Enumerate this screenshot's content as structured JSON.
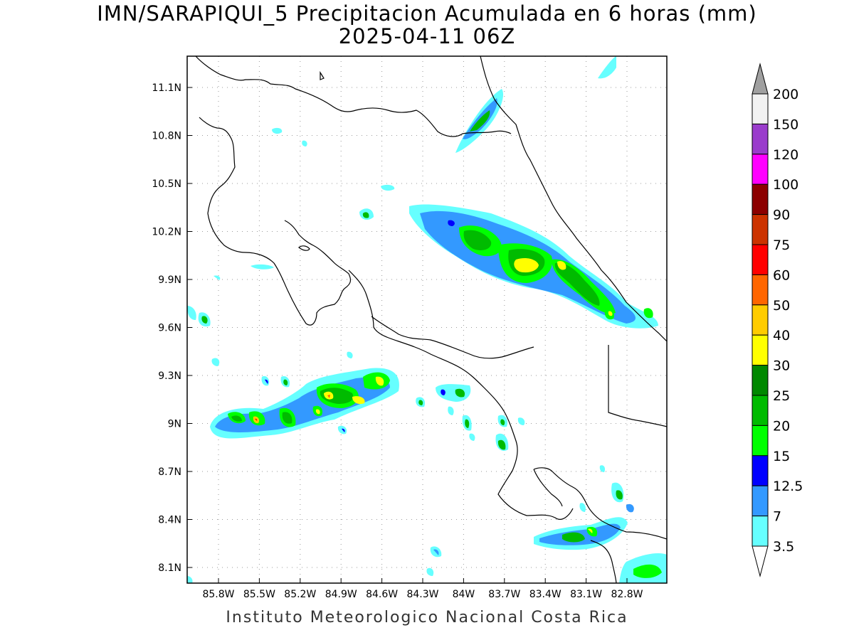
{
  "title": {
    "line1": "IMN/SARAPIQUI_5 Precipitacion Acumulada en 6 horas (mm)",
    "line2": "2025-04-11 06Z"
  },
  "footer": "Instituto Meteorologico Nacional Costa Rica",
  "axes": {
    "lat_ticks": [
      "11.1N",
      "10.8N",
      "10.5N",
      "10.2N",
      "9.9N",
      "9.6N",
      "9.3N",
      "9N",
      "8.7N",
      "8.4N",
      "8.1N"
    ],
    "lon_ticks": [
      "85.8W",
      "85.5W",
      "85.2W",
      "84.9W",
      "84.6W",
      "84.3W",
      "84W",
      "83.7W",
      "83.4W",
      "83.1W",
      "82.8W"
    ]
  },
  "colorbar": {
    "levels": [
      {
        "label": "200",
        "color": "#f2f2f2"
      },
      {
        "label": "150",
        "color": "#9a3ccc"
      },
      {
        "label": "120",
        "color": "#ff00ff"
      },
      {
        "label": "100",
        "color": "#8c0000"
      },
      {
        "label": "90",
        "color": "#cc3300"
      },
      {
        "label": "75",
        "color": "#ff0000"
      },
      {
        "label": "60",
        "color": "#ff6600"
      },
      {
        "label": "50",
        "color": "#ffcc00"
      },
      {
        "label": "40",
        "color": "#ffff00"
      },
      {
        "label": "30",
        "color": "#008800"
      },
      {
        "label": "25",
        "color": "#00bb00"
      },
      {
        "label": "20",
        "color": "#00ff00"
      },
      {
        "label": "15",
        "color": "#0000ff"
      },
      {
        "label": "12.5",
        "color": "#3399ff"
      },
      {
        "label": "7",
        "color": "#66ffff"
      },
      {
        "label": "3.5",
        "color": ""
      }
    ],
    "top_arrow_color": "#a0a0a0",
    "bottom_arrow_color": "#ffffff"
  }
}
